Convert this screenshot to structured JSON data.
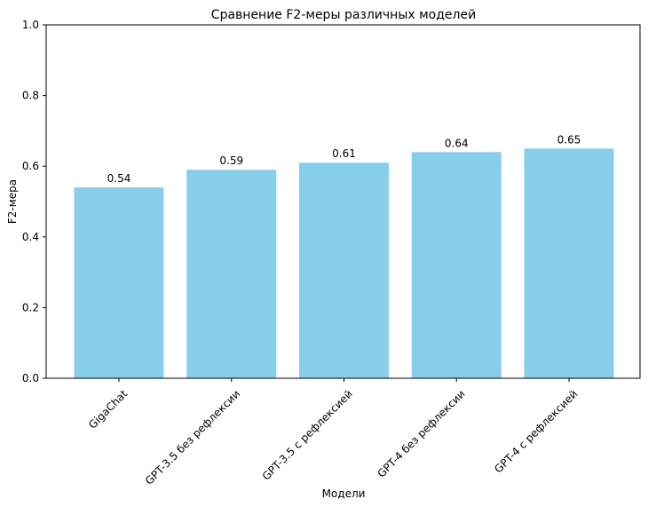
{
  "chart_data": {
    "type": "bar",
    "title": "Сравнение F2-меры различных моделей",
    "xlabel": "Модели",
    "ylabel": "F2-мера",
    "categories": [
      "GigaChat",
      "GPT-3.5 без рефлексии",
      "GPT-3.5 с рефлексией",
      "GPT-4 без рефлексии",
      "GPT-4 с рефлексией"
    ],
    "values": [
      0.54,
      0.59,
      0.61,
      0.64,
      0.65
    ],
    "data_labels": [
      "0.54",
      "0.59",
      "0.61",
      "0.64",
      "0.65"
    ],
    "ylim": [
      0,
      1.0
    ],
    "yticks": [
      0.0,
      0.2,
      0.4,
      0.6,
      0.8,
      1.0
    ],
    "ytick_labels": [
      "0.0",
      "0.2",
      "0.4",
      "0.6",
      "0.8",
      "1.0"
    ],
    "bar_color": "#87ceeb",
    "grid": false,
    "legend": "none"
  }
}
